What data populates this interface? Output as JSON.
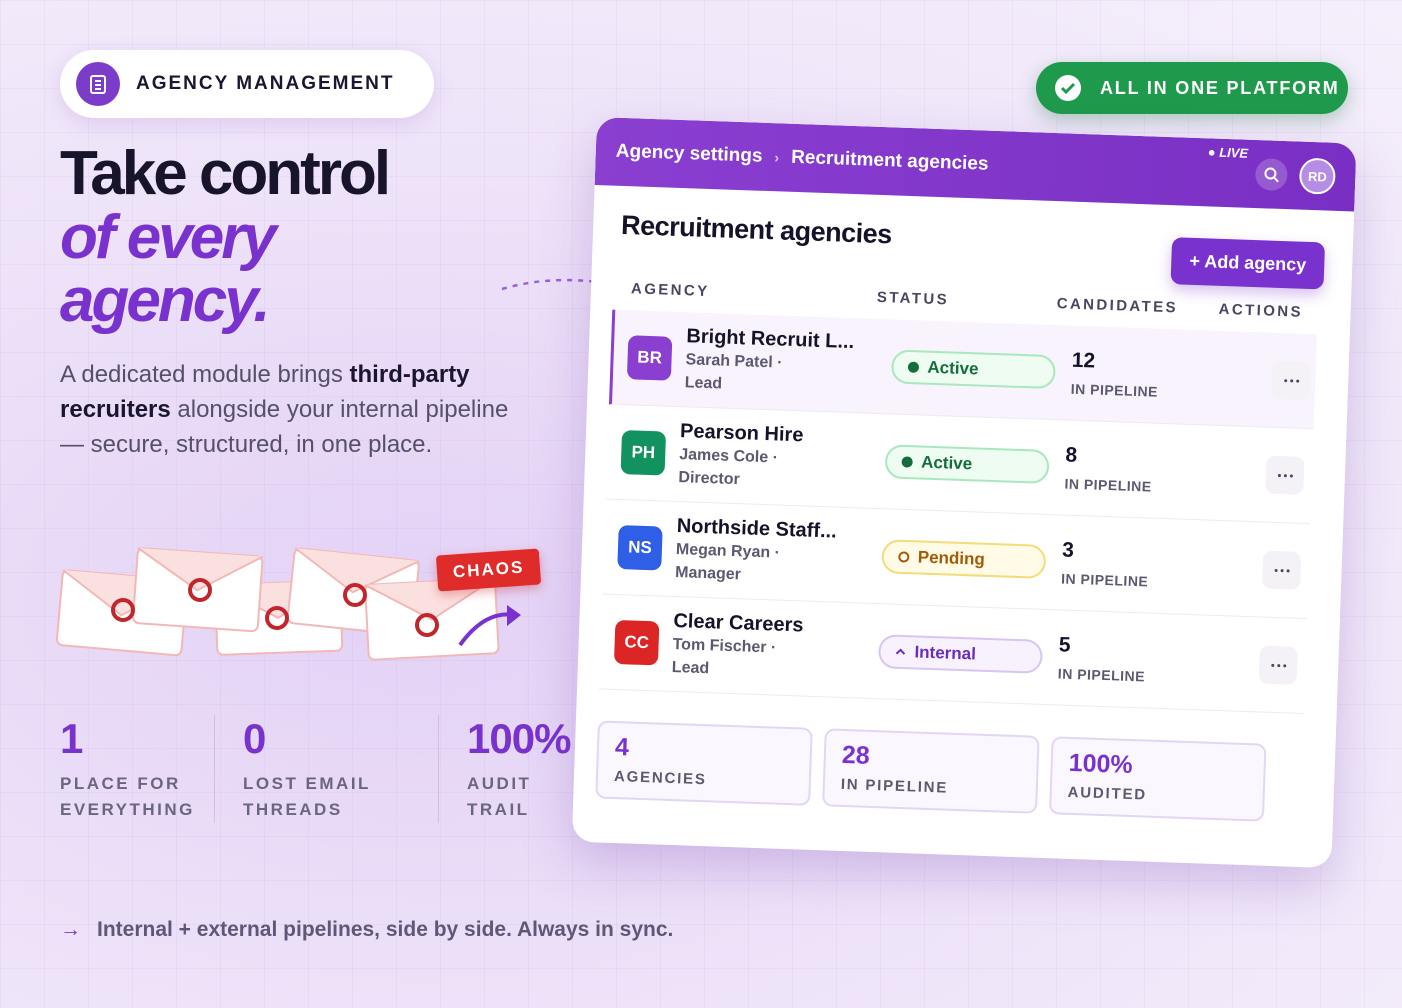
{
  "badge": "AGENCY MANAGEMENT",
  "headline": {
    "line1": "Take control",
    "line2": "of every",
    "line3": "agency."
  },
  "description": {
    "before": "A dedicated module brings ",
    "bold": "third-party recruiters",
    "after": " alongside your internal pipeline — secure, structured, in one place."
  },
  "chaos_label": "CHAOS",
  "stats": [
    {
      "value": "1",
      "label": "PLACE FOR EVERYTHING"
    },
    {
      "value": "0",
      "label": "LOST EMAIL THREADS"
    },
    {
      "value": "100%",
      "label": "AUDIT TRAIL"
    }
  ],
  "footer_note": "Internal + external pipelines, side by side. Always in sync.",
  "platform_badge": "ALL IN ONE PLATFORM",
  "app": {
    "breadcrumb": [
      "Agency settings",
      "Recruitment agencies"
    ],
    "live": "LIVE",
    "avatar": "RD",
    "title": "Recruitment agencies",
    "add_button": "+ Add agency",
    "columns": [
      "AGENCY",
      "STATUS",
      "CANDIDATES",
      "ACTIONS"
    ],
    "rows": [
      {
        "initials": "BR",
        "color": "#8a3fd1",
        "name": "Bright Recruit L...",
        "contact": "Sarah Patel · Lead",
        "status": "Active",
        "candidates": "12",
        "candidates_label": "IN PIPELINE"
      },
      {
        "initials": "PH",
        "color": "#12925e",
        "name": "Pearson Hire",
        "contact": "James Cole · Director",
        "status": "Active",
        "candidates": "8",
        "candidates_label": "IN PIPELINE"
      },
      {
        "initials": "NS",
        "color": "#2f5fe6",
        "name": "Northside Staff...",
        "contact": "Megan Ryan · Manager",
        "status": "Pending",
        "candidates": "3",
        "candidates_label": "IN PIPELINE"
      },
      {
        "initials": "CC",
        "color": "#dc2626",
        "name": "Clear Careers",
        "contact": "Tom Fischer · Lead",
        "status": "Internal",
        "candidates": "5",
        "candidates_label": "IN PIPELINE"
      }
    ],
    "summary": [
      {
        "value": "4",
        "label": "AGENCIES"
      },
      {
        "value": "28",
        "label": "IN PIPELINE"
      },
      {
        "value": "100%",
        "label": "AUDITED"
      }
    ]
  }
}
